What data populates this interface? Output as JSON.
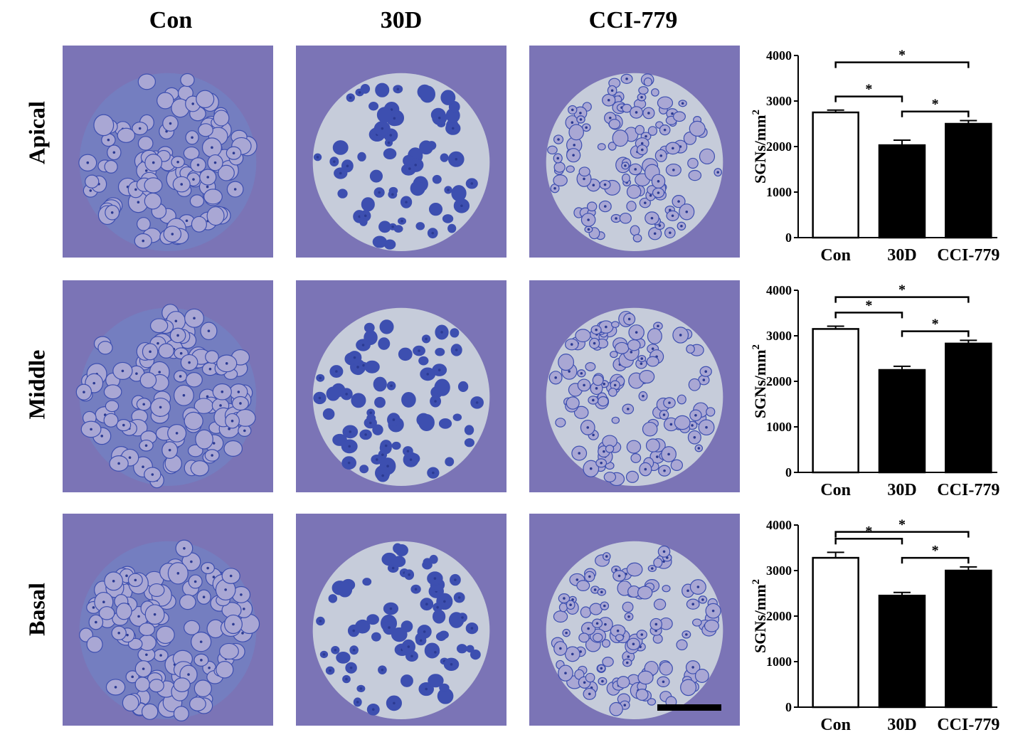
{
  "column_labels": [
    "Con",
    "30D",
    "CCI-779"
  ],
  "row_labels": [
    "Apical",
    "Middle",
    "Basal"
  ],
  "colors": {
    "stain_bg": "#7b74b6",
    "stain_dark": "#3d4fb0",
    "cell_fill": "#a9a7d4",
    "space_light": "#dfe9e6",
    "bar_con": "#ffffff",
    "bar_treated": "#000000"
  },
  "chart_data": [
    {
      "type": "bar",
      "row": "Apical",
      "categories": [
        "Con",
        "30D",
        "CCI-779"
      ],
      "values": [
        2750,
        2030,
        2500
      ],
      "errors": [
        50,
        110,
        70
      ],
      "ylabel": "SGNs/mm",
      "ylabel_sup": "2",
      "ylim": [
        0,
        4000
      ],
      "yticks": [
        "0",
        "1000",
        "2000",
        "3000",
        "4000"
      ],
      "significance": [
        {
          "from": "Con",
          "to": "30D",
          "label": "*"
        },
        {
          "from": "30D",
          "to": "CCI-779",
          "label": "*"
        },
        {
          "from": "Con",
          "to": "CCI-779",
          "label": "*"
        }
      ]
    },
    {
      "type": "bar",
      "row": "Middle",
      "categories": [
        "Con",
        "30D",
        "CCI-779"
      ],
      "values": [
        3150,
        2250,
        2830
      ],
      "errors": [
        60,
        80,
        70
      ],
      "ylabel": "SGNs/mm",
      "ylabel_sup": "2",
      "ylim": [
        0,
        4000
      ],
      "yticks": [
        "0",
        "1000",
        "2000",
        "3000",
        "4000"
      ],
      "significance": [
        {
          "from": "Con",
          "to": "30D",
          "label": "*"
        },
        {
          "from": "30D",
          "to": "CCI-779",
          "label": "*"
        },
        {
          "from": "Con",
          "to": "CCI-779",
          "label": "*"
        }
      ]
    },
    {
      "type": "bar",
      "row": "Basal",
      "categories": [
        "Con",
        "30D",
        "CCI-779"
      ],
      "values": [
        3280,
        2450,
        3000
      ],
      "errors": [
        120,
        70,
        80
      ],
      "ylabel": "SGNs/mm",
      "ylabel_sup": "2",
      "ylim": [
        0,
        4000
      ],
      "yticks": [
        "0",
        "1000",
        "2000",
        "3000",
        "4000"
      ],
      "significance": [
        {
          "from": "Con",
          "to": "30D",
          "label": "*"
        },
        {
          "from": "30D",
          "to": "CCI-779",
          "label": "*"
        },
        {
          "from": "Con",
          "to": "CCI-779",
          "label": "*"
        }
      ]
    }
  ]
}
